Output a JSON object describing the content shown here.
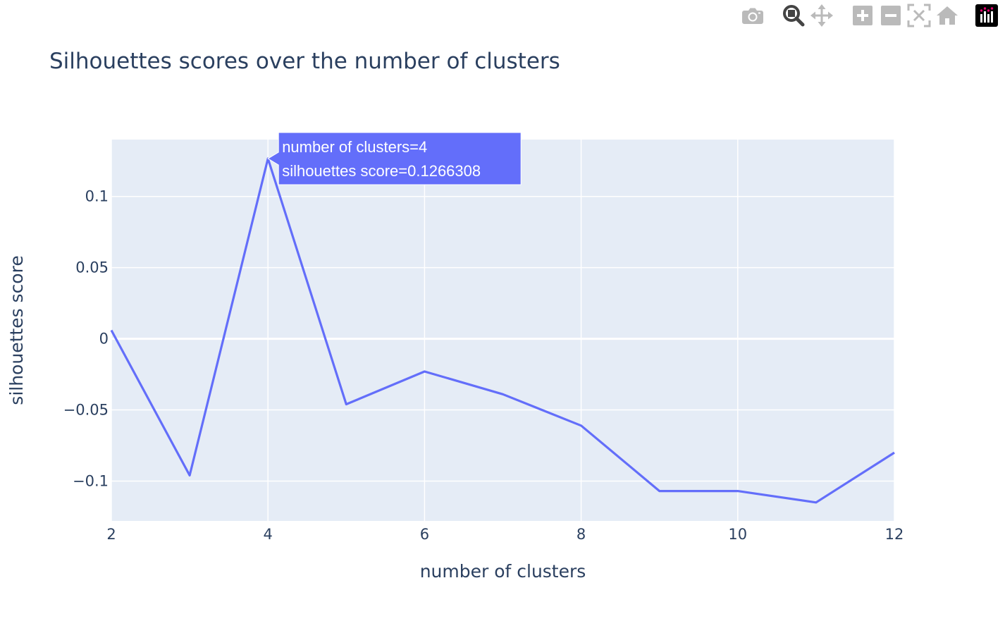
{
  "modebar": {
    "groups": [
      [
        "camera-icon"
      ],
      [
        "zoom-icon",
        "pan-icon"
      ],
      [
        "zoom-in-icon",
        "zoom-out-icon",
        "autoscale-icon",
        "reset-axes-icon"
      ],
      [
        "plotly-logo-icon"
      ]
    ]
  },
  "colors": {
    "plot_bg": "#E5ECF6",
    "grid": "#ffffff",
    "line": "#636EFA",
    "text": "#2A3F5F",
    "tooltip_bg": "#636EFA",
    "tooltip_text": "#ffffff",
    "icon": "#BABABA",
    "icon_active": "#444444"
  },
  "chart_data": {
    "type": "line",
    "title": "Silhouettes scores over the number of clusters",
    "xlabel": "number of clusters",
    "ylabel": "silhouettes score",
    "xlim": [
      2,
      12
    ],
    "ylim": [
      -0.128,
      0.14
    ],
    "x_ticks": [
      2,
      4,
      6,
      8,
      10,
      12
    ],
    "x_tick_labels": [
      "2",
      "4",
      "6",
      "8",
      "10",
      "12"
    ],
    "y_ticks": [
      -0.1,
      -0.05,
      0,
      0.05,
      0.1
    ],
    "y_tick_labels": [
      "−0.1",
      "−0.05",
      "0",
      "0.05",
      "0.1"
    ],
    "grid": true,
    "legend": "none",
    "series": [
      {
        "x": [
          2,
          3,
          4,
          5,
          6,
          7,
          8,
          9,
          10,
          11,
          12
        ],
        "values": [
          0.006,
          -0.096,
          0.1266308,
          -0.046,
          -0.023,
          -0.039,
          -0.061,
          -0.107,
          -0.107,
          -0.115,
          -0.08
        ]
      }
    ],
    "hover": {
      "point_index": 2,
      "lines": [
        "number of clusters=4",
        "silhouettes score=0.1266308"
      ]
    }
  }
}
